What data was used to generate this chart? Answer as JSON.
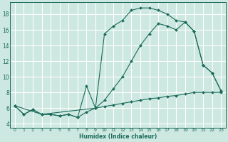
{
  "xlabel": "Humidex (Indice chaleur)",
  "ylabel": "",
  "bg_color": "#cde8e0",
  "grid_color": "#ffffff",
  "line_color": "#1a6b5a",
  "xlim": [
    -0.5,
    23.5
  ],
  "ylim": [
    3.5,
    19.5
  ],
  "xticks": [
    0,
    1,
    2,
    3,
    4,
    5,
    6,
    7,
    8,
    9,
    10,
    11,
    12,
    13,
    14,
    15,
    16,
    17,
    18,
    19,
    20,
    21,
    22,
    23
  ],
  "yticks": [
    4,
    6,
    8,
    10,
    12,
    14,
    16,
    18
  ],
  "series1_x": [
    0,
    1,
    2,
    3,
    4,
    5,
    6,
    7,
    8,
    9,
    10,
    11,
    12,
    13,
    14,
    15,
    16,
    17,
    18,
    19,
    20,
    21,
    22,
    23
  ],
  "series1_y": [
    6.3,
    5.2,
    5.8,
    5.2,
    5.2,
    5.0,
    5.2,
    4.8,
    8.8,
    6.0,
    15.5,
    16.5,
    17.2,
    18.5,
    18.8,
    18.8,
    18.5,
    18.0,
    17.2,
    17.0,
    15.8,
    11.5,
    10.5,
    8.2
  ],
  "series2_x": [
    0,
    1,
    2,
    3,
    4,
    5,
    6,
    7,
    8,
    9,
    10,
    11,
    12,
    13,
    14,
    15,
    16,
    17,
    18,
    19,
    20,
    21,
    22,
    23
  ],
  "series2_y": [
    6.3,
    5.2,
    5.8,
    5.2,
    5.2,
    5.0,
    5.2,
    4.8,
    5.5,
    6.0,
    6.2,
    6.4,
    6.6,
    6.8,
    7.0,
    7.2,
    7.3,
    7.5,
    7.6,
    7.8,
    8.0,
    8.0,
    8.0,
    8.0
  ],
  "series3_x": [
    0,
    3,
    9,
    10,
    11,
    12,
    13,
    14,
    15,
    16,
    17,
    18,
    19,
    20,
    21,
    22,
    23
  ],
  "series3_y": [
    6.3,
    5.2,
    6.0,
    7.0,
    8.5,
    10.0,
    12.0,
    14.0,
    15.5,
    16.8,
    16.5,
    16.0,
    17.0,
    15.8,
    11.5,
    10.5,
    8.2
  ]
}
